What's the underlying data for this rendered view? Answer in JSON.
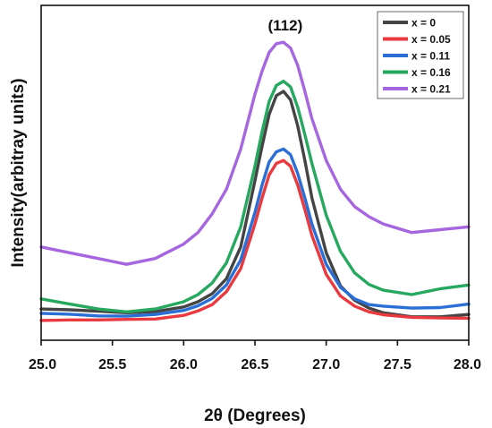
{
  "chart_data": {
    "type": "line",
    "xlabel": "2θ (Degrees)",
    "ylabel": "Intensity(arbitray units)",
    "xlim": [
      25.0,
      28.0
    ],
    "ylim": [
      0,
      100
    ],
    "x_ticks": [
      "25.0",
      "25.5",
      "26.0",
      "26.5",
      "27.0",
      "27.5",
      "28.0"
    ],
    "y_tick_labels_shown": false,
    "grid": false,
    "legend_position": "top-right",
    "annotation": {
      "text": "(112)",
      "x": 26.7
    },
    "series": [
      {
        "name": "x = 0",
        "color": "#444444",
        "x": [
          25.0,
          25.2,
          25.4,
          25.6,
          25.8,
          26.0,
          26.1,
          26.2,
          26.3,
          26.4,
          26.5,
          26.55,
          26.6,
          26.65,
          26.7,
          26.75,
          26.8,
          26.85,
          26.9,
          27.0,
          27.1,
          27.2,
          27.3,
          27.4,
          27.6,
          27.8,
          28.0
        ],
        "y": [
          6.5,
          6.2,
          5.7,
          5.2,
          5.6,
          7.2,
          9.0,
          11.8,
          17.0,
          28.0,
          51.0,
          63.0,
          74.0,
          80.5,
          82.0,
          79.0,
          70.0,
          58.0,
          45.0,
          26.0,
          14.5,
          9.5,
          6.8,
          5.2,
          3.8,
          3.8,
          4.6
        ]
      },
      {
        "name": "x = 0.05",
        "color": "#e83a3f",
        "x": [
          25.0,
          25.2,
          25.4,
          25.6,
          25.8,
          26.0,
          26.1,
          26.2,
          26.3,
          26.4,
          26.5,
          26.55,
          26.6,
          26.65,
          26.7,
          26.75,
          26.8,
          26.85,
          26.9,
          27.0,
          27.1,
          27.2,
          27.3,
          27.4,
          27.6,
          27.8,
          28.0
        ],
        "y": [
          2.5,
          2.7,
          2.7,
          2.9,
          3.0,
          4.3,
          5.8,
          8.0,
          12.5,
          20.5,
          36.0,
          45.0,
          53.0,
          57.0,
          58.0,
          56.0,
          49.5,
          41.0,
          32.0,
          18.5,
          11.0,
          7.5,
          5.5,
          4.5,
          3.6,
          3.4,
          3.3
        ]
      },
      {
        "name": "x = 0.11",
        "color": "#2a6fd6",
        "x": [
          25.0,
          25.2,
          25.4,
          25.6,
          25.8,
          26.0,
          26.1,
          26.2,
          26.3,
          26.4,
          26.5,
          26.55,
          26.6,
          26.65,
          26.7,
          26.75,
          26.8,
          26.85,
          26.9,
          27.0,
          27.1,
          27.2,
          27.3,
          27.4,
          27.6,
          27.8,
          28.0
        ],
        "y": [
          5.0,
          4.7,
          4.1,
          4.0,
          4.6,
          6.0,
          7.6,
          10.2,
          14.8,
          23.5,
          40.0,
          49.5,
          57.5,
          61.0,
          62.0,
          60.0,
          53.5,
          45.0,
          36.0,
          22.0,
          14.0,
          10.0,
          8.0,
          7.5,
          6.8,
          7.0,
          8.2
        ]
      },
      {
        "name": "x = 0.16",
        "color": "#27a85f",
        "x": [
          25.0,
          25.2,
          25.4,
          25.6,
          25.8,
          26.0,
          26.1,
          26.2,
          26.3,
          26.4,
          26.5,
          26.55,
          26.6,
          26.65,
          26.7,
          26.75,
          26.8,
          26.85,
          26.9,
          27.0,
          27.1,
          27.2,
          27.3,
          27.4,
          27.6,
          27.8,
          28.0
        ],
        "y": [
          10.0,
          8.2,
          6.5,
          5.5,
          6.5,
          9.0,
          11.5,
          15.5,
          22.5,
          35.0,
          56.0,
          68.0,
          78.5,
          84.0,
          85.5,
          83.5,
          76.5,
          67.0,
          57.0,
          39.0,
          26.5,
          19.0,
          15.0,
          13.0,
          11.5,
          13.5,
          14.8
        ]
      },
      {
        "name": "x = 0.21",
        "color": "#a666e0",
        "x": [
          25.0,
          25.2,
          25.4,
          25.6,
          25.8,
          26.0,
          26.1,
          26.2,
          26.3,
          26.4,
          26.5,
          26.55,
          26.6,
          26.65,
          26.7,
          26.75,
          26.8,
          26.85,
          26.9,
          27.0,
          27.1,
          27.2,
          27.3,
          27.4,
          27.6,
          27.8,
          28.0
        ],
        "y": [
          28.0,
          26.0,
          24.0,
          22.0,
          24.0,
          29.0,
          33.0,
          39.5,
          48.0,
          62.0,
          81.0,
          89.0,
          95.5,
          98.5,
          99.0,
          97.0,
          91.0,
          82.0,
          72.5,
          58.0,
          48.0,
          42.0,
          38.5,
          36.0,
          33.0,
          34.0,
          35.0
        ]
      }
    ]
  }
}
